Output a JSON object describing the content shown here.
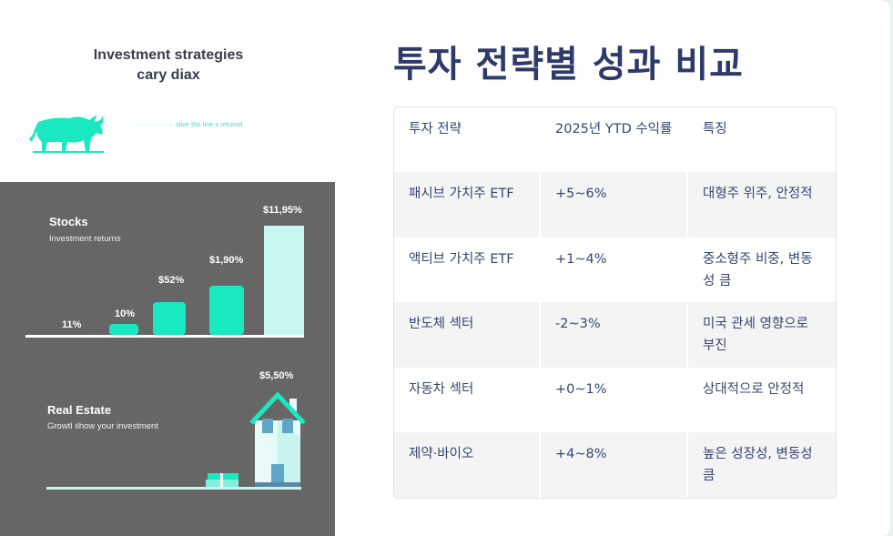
{
  "illustration": {
    "heading": "Investment strategies",
    "subheading": "cary diax",
    "bull_caption": "slive tho line s returnd",
    "stocks": {
      "title": "Stocks",
      "subtitle": "Investment returns",
      "bars": [
        {
          "label": "11%",
          "level": 0
        },
        {
          "label": "10%",
          "level": 0.1
        },
        {
          "label": "$52%",
          "level": 0.3
        },
        {
          "label": "$1,90%",
          "level": 0.45
        },
        {
          "label": "$11,95%",
          "level": 1
        }
      ]
    },
    "real_estate": {
      "title": "Real Estate",
      "subtitle": "Growtl ılhow your investment",
      "value": "$5,50%"
    },
    "colors": {
      "accent": "#19e8c0",
      "panel": "#666666",
      "light": "#c8f7f2"
    }
  },
  "page": {
    "title": "투자 전략별 성과 비교"
  },
  "table": {
    "headers": [
      "투자 전략",
      "2025년 YTD 수익률",
      "특징"
    ],
    "rows": [
      [
        "패시브 가치주 ETF",
        "+5~6%",
        "대형주 위주, 안정적"
      ],
      [
        "액티브 가치주 ETF",
        "+1~4%",
        "중소형주 비중, 변동성 큼"
      ],
      [
        "반도체 섹터",
        "-2~3%",
        "미국 관세 영향으로 부진"
      ],
      [
        "자동차 섹터",
        "+0~1%",
        "상대적으로 안정적"
      ],
      [
        "제약·바이오",
        "+4~8%",
        "높은 성장성, 변동성 큼"
      ]
    ]
  }
}
